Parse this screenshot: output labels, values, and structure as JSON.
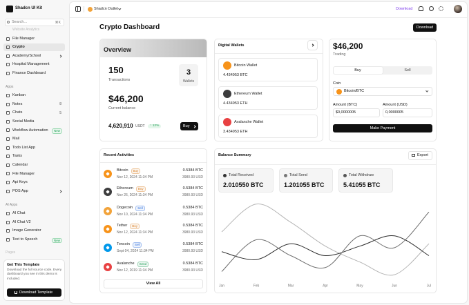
{
  "sidebar": {
    "brand": "Shadcn UI Kit",
    "search": "Search...",
    "shortcut": "⌘K",
    "partial_item": "Website Analytics",
    "items": [
      {
        "label": "File Manager"
      },
      {
        "label": "Crypto",
        "active": true
      },
      {
        "label": "Academy/School",
        "submenu": true
      },
      {
        "label": "Hospital Management"
      },
      {
        "label": "Finance Dashboard"
      }
    ],
    "sections": [
      {
        "title": "Apps",
        "items": [
          {
            "label": "Kanban"
          },
          {
            "label": "Notes",
            "badge": "8"
          },
          {
            "label": "Chats",
            "badge": "5"
          },
          {
            "label": "Social Media"
          },
          {
            "label": "Workflow Automation",
            "badge": "New"
          },
          {
            "label": "Mail"
          },
          {
            "label": "Todo List App"
          },
          {
            "label": "Tasks"
          },
          {
            "label": "Calendar"
          },
          {
            "label": "File Manager"
          },
          {
            "label": "Api Keys"
          },
          {
            "label": "POS App",
            "submenu": true
          }
        ]
      },
      {
        "title": "AI Apps",
        "items": [
          {
            "label": "AI Chat"
          },
          {
            "label": "AI Chat V2"
          },
          {
            "label": "Image Generator"
          },
          {
            "label": "Text to Speech",
            "badge": "New"
          }
        ]
      }
    ],
    "pages_label": "Pages",
    "promo": {
      "title": "Get This Template",
      "text": "Download the full source code. Every dashboard you see in this demo is included.",
      "button": "Download Template"
    }
  },
  "header": {
    "store": "Shadcn Outlet",
    "link": "Download"
  },
  "page": {
    "title": "Crypto Dashboard",
    "button": "Download"
  },
  "overview": {
    "title": "Overview",
    "transactions": "150",
    "transactions_label": "Transactions",
    "wallets": "3",
    "wallets_label": "Wallets",
    "balance": "$46,200",
    "balance_label": "Current balance",
    "usdt": "4,620,910",
    "usdt_label": "USDT",
    "change": "↑ 12%",
    "button": "Buy"
  },
  "digital_wallets": {
    "title": "Digital Wallets",
    "wallets": [
      {
        "name": "Bitcoin Wallet",
        "amount": "4.434953 BTC",
        "color": "#f7931a"
      },
      {
        "name": "Ethereum Wallet",
        "amount": "4.434953 ETH",
        "color": "#3c3c3d"
      },
      {
        "name": "Avalanche Wallet",
        "amount": "3.434953 ETH",
        "color": "#e84142"
      }
    ]
  },
  "trade": {
    "amount": "$46,200",
    "label": "Trading",
    "tabs": [
      "Buy",
      "Sell"
    ],
    "coin_label": "Coin",
    "coin": "Bitcoin/BTC",
    "coin_color": "#f7931a",
    "btc_label": "Amount (BTC)",
    "btc_value": "$0,0000005",
    "usd_label": "Amount (USD)",
    "usd_value": "0,0000005",
    "button": "Make Payment"
  },
  "recent_activities": {
    "title": "Recent Activities",
    "rows": [
      {
        "name": "Bitcoin",
        "badge": "Buy",
        "badge_color": "#d9822b",
        "date": "Nov 12, 2024 11:34 PM",
        "amount": "0.5384 BTC",
        "usd": "3980.93 USD",
        "color": "#f7931a"
      },
      {
        "name": "Ethereum",
        "badge": "Buy",
        "badge_color": "#d9822b",
        "date": "Nov 26, 2024 11:34 PM",
        "amount": "0.5384 BTC",
        "usd": "3980.93 USD",
        "color": "#3c3c3d"
      },
      {
        "name": "Dogecoin",
        "badge": "Sell",
        "badge_color": "#2f6fde",
        "date": "Nov 10, 2024 11:34 PM",
        "amount": "0.5384 BTC",
        "usd": "3980.93 USD",
        "color": "#f2a33a"
      },
      {
        "name": "Tether",
        "badge": "Buy",
        "badge_color": "#d9822b",
        "date": "Nov 12, 2024 11:34 PM",
        "amount": "0.5384 BTC",
        "usd": "3980.93 USD",
        "color": "#f7931a"
      },
      {
        "name": "Toncoin",
        "badge": "Sell",
        "badge_color": "#2f6fde",
        "date": "Sept 04, 2024 11:34 PM",
        "amount": "0.5384 BTC",
        "usd": "3980.93 USD",
        "color": "#0098ea"
      },
      {
        "name": "Avalanche",
        "badge": "Send",
        "badge_color": "#1f9d55",
        "date": "Nov 12, 2019 11:34 PM",
        "amount": "0.5384 BTC",
        "usd": "3980.93 USD",
        "color": "#e84142"
      }
    ],
    "button": "View All"
  },
  "balance_summary": {
    "title": "Balance Summary",
    "button": "Export",
    "stats": [
      {
        "label": "Total Received",
        "value": "2.010550 BTC",
        "color": "#333333"
      },
      {
        "label": "Total Send",
        "value": "1.201055 BTC",
        "color": "#777777"
      },
      {
        "label": "Total Withdraw",
        "value": "5.41055 BTC",
        "color": "#555555"
      }
    ],
    "chart": {
      "type": "line",
      "categories": [
        "Jan",
        "Feb",
        "Mar",
        "Apr",
        "May",
        "Jun",
        "Jul"
      ],
      "ylim": [
        0,
        100
      ],
      "series": [
        {
          "color": "#b5b5b5",
          "values": [
            60,
            95,
            72,
            42,
            22,
            6,
            45
          ]
        },
        {
          "color": "#2b2b2b",
          "values": [
            35,
            25,
            45,
            30,
            42,
            55,
            30
          ]
        },
        {
          "color": "#6e6e6e",
          "values": [
            10,
            50,
            30,
            15,
            55,
            40,
            85
          ]
        }
      ]
    }
  }
}
